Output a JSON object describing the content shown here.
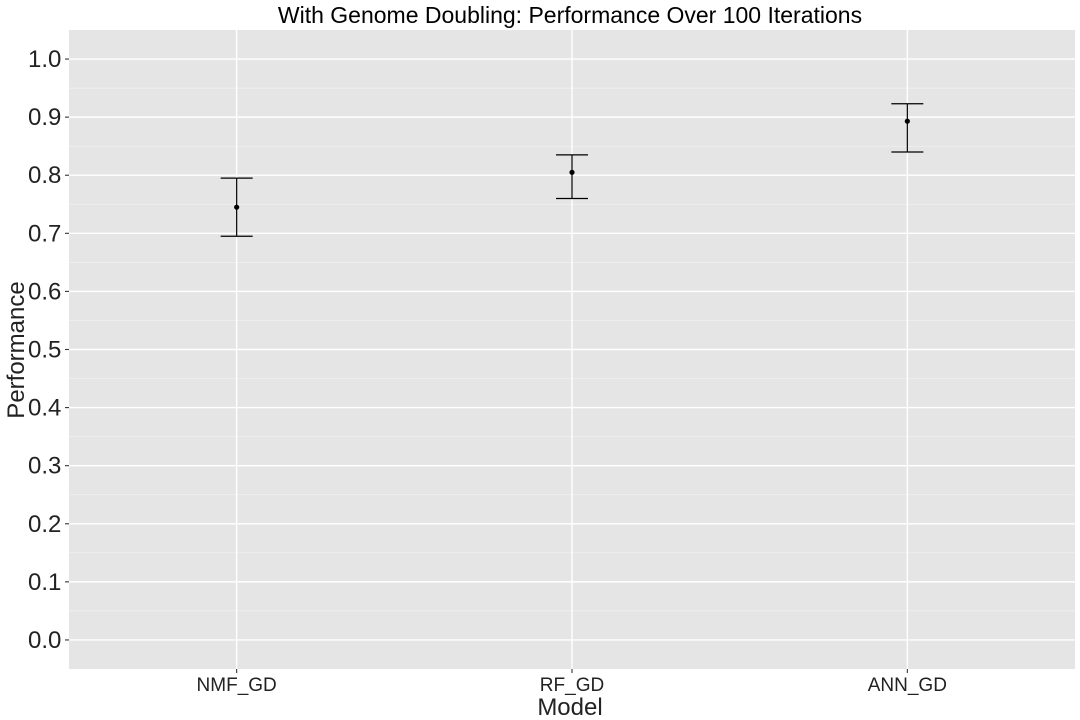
{
  "chart_data": {
    "type": "scatter",
    "title": "With Genome Doubling: Performance Over 100 Iterations",
    "xlabel": "Model",
    "ylabel": "Performance",
    "categories": [
      "NMF_GD",
      "RF_GD",
      "ANN_GD"
    ],
    "points": [
      {
        "category": "NMF_GD",
        "mean": 0.745,
        "lower": 0.695,
        "upper": 0.795
      },
      {
        "category": "RF_GD",
        "mean": 0.805,
        "lower": 0.76,
        "upper": 0.835
      },
      {
        "category": "ANN_GD",
        "mean": 0.893,
        "lower": 0.84,
        "upper": 0.923
      }
    ],
    "yticks": [
      "0.0",
      "0.1",
      "0.2",
      "0.3",
      "0.4",
      "0.5",
      "0.6",
      "0.7",
      "0.8",
      "0.9",
      "1.0"
    ],
    "ylim": [
      -0.05,
      1.05
    ],
    "grid": true,
    "legend": "none",
    "colors": {
      "panel": "#e5e5e5",
      "grid": "#ffffff",
      "marks": "#000000"
    }
  }
}
